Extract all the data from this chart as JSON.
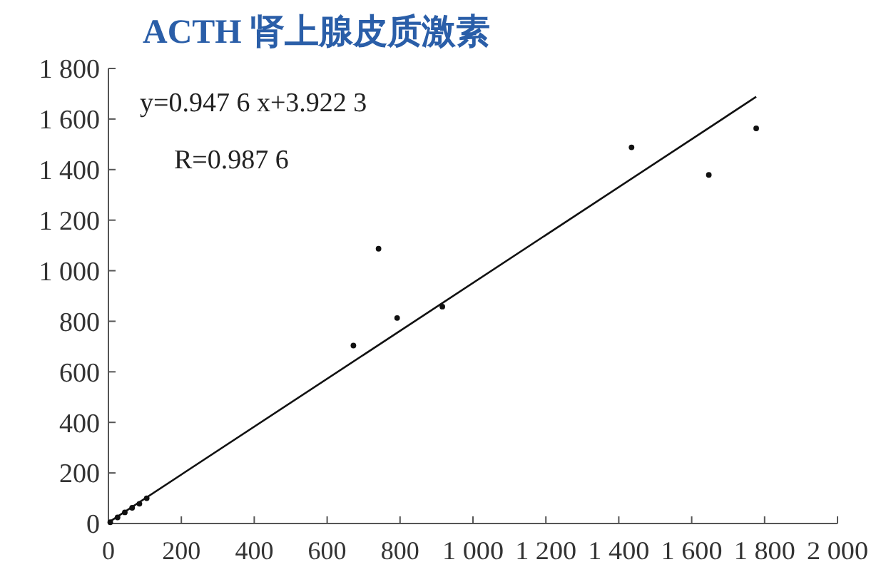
{
  "chart_data": {
    "type": "scatter",
    "title": "ACTH 肾上腺皮质激素",
    "annotations": [
      "y=0.947 6 x+3.922 3",
      "R=0.987 6"
    ],
    "xlim": [
      0,
      2000
    ],
    "ylim": [
      0,
      1800
    ],
    "xticks": [
      0,
      200,
      400,
      600,
      800,
      {
        "value": 1000,
        "label": "1 000"
      },
      {
        "value": 1200,
        "label": "1 200"
      },
      {
        "value": 1400,
        "label": "1 400"
      },
      {
        "value": 1600,
        "label": "1 600"
      },
      {
        "value": 1800,
        "label": "1 800"
      },
      {
        "value": 2000,
        "label": "2 000"
      }
    ],
    "yticks": [
      0,
      200,
      400,
      600,
      800,
      {
        "value": 1000,
        "label": "1 000"
      },
      {
        "value": 1200,
        "label": "1 200"
      },
      {
        "value": 1400,
        "label": "1 400"
      },
      {
        "value": 1600,
        "label": "1 600"
      },
      {
        "value": 1800,
        "label": "1 800"
      }
    ],
    "grid": false,
    "marker": "circle",
    "series": [
      {
        "color": "#111111",
        "x": [
          5,
          25,
          45,
          65,
          85,
          105,
          672,
          741,
          792,
          916,
          1435,
          1647,
          1777
        ],
        "values": [
          5,
          24,
          44,
          62,
          78,
          100,
          704,
          1087,
          813,
          858,
          1488,
          1379,
          1563
        ]
      },
      {
        "type": "line",
        "color": "#111111",
        "marker": "none",
        "x": [
          0,
          1777
        ],
        "values": [
          4,
          1688
        ]
      }
    ]
  }
}
